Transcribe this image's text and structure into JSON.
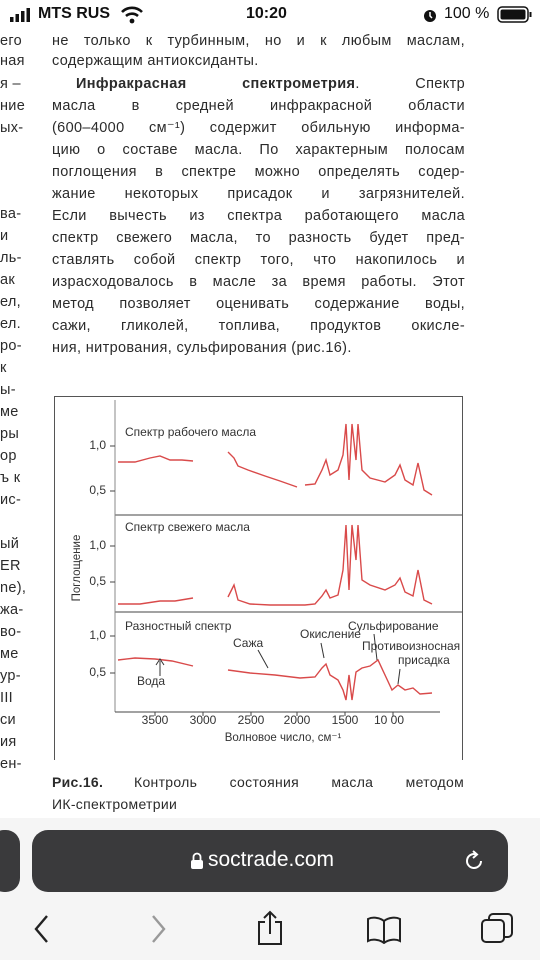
{
  "status_bar": {
    "carrier": "MTS RUS",
    "time": "10:20",
    "battery": "100 %"
  },
  "left_column": [
    "его",
    "ная",
    "я –",
    "ние",
    "ых-",
    "ва-",
    "и",
    "ль-",
    "ак",
    "ел,",
    "ел.",
    "ро-",
    "к",
    "ы-",
    "ме",
    "ры",
    "ор",
    "ъ к",
    "ис-",
    "ый",
    "ER",
    "ne),",
    "жа-",
    "во-",
    "ме",
    "ур-",
    "III",
    "си",
    "ия",
    "ен-"
  ],
  "article": {
    "heading": "Инфракрасная спектрометрия",
    "lines": [
      "не только к турбинным, но и к любым маслам,",
      "содержащим антиоксиданты.",
      ". Спектр",
      "масла в средней инфракрасной области",
      "(600–4000 см⁻¹) содержит обильную информа-",
      "цию о составе масла. По характерным полосам",
      "поглощения в спектре можно определять содер-",
      "жание некоторых присадок и загрязнителей.",
      "Если вычесть из спектра работающего масла",
      "спектр свежего масла, то разность будет пред-",
      "ставлять собой спектр того, что накопилось и",
      "израсходовалось в масле за время работы. Этот",
      "метод позволяет оценивать содержание воды,",
      "сажи, гликолей, топлива, продуктов окисле-",
      "ния, нитрования, сульфирования (рис.16)."
    ]
  },
  "figure": {
    "panels": [
      {
        "title": "Спектр рабочего масла",
        "yticks": [
          "1,0",
          "0,5"
        ]
      },
      {
        "title": "Спектр свежего масла",
        "yticks": [
          "1,0",
          "0,5"
        ]
      },
      {
        "title": "Разностный спектр",
        "yticks": [
          "1,0",
          "0,5"
        ]
      }
    ],
    "xticks": [
      "3500",
      "3000",
      "2500",
      "2000",
      "1500",
      "10 00"
    ],
    "x_label": "Волновое число, см⁻¹",
    "y_label": "Поглощение",
    "annotations": [
      "Вода",
      "Сажа",
      "Окисление",
      "Сульфирование",
      "Противоизносная",
      "присадка"
    ]
  },
  "caption": {
    "label": "Рис.16.",
    "text": "Контроль состояния масла методом",
    "text_2": "ИК-спектрометрии"
  },
  "browser": {
    "url": "soctrade.com"
  }
}
